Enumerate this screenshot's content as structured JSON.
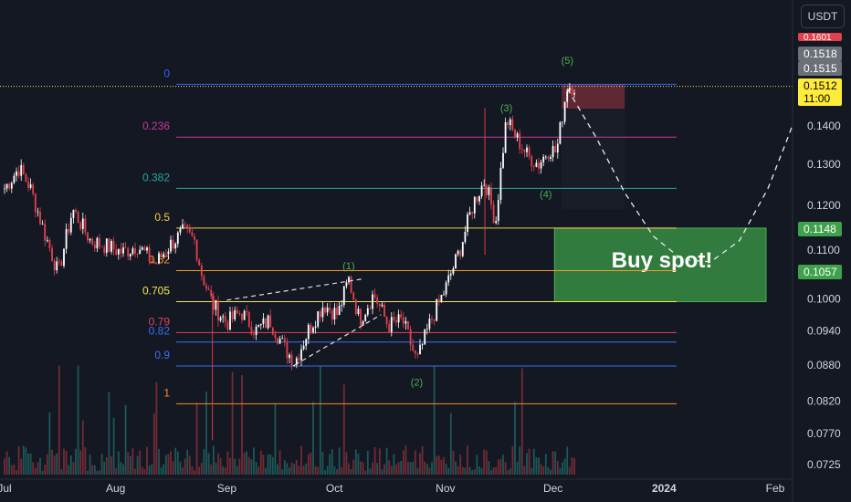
{
  "header": {
    "currency_button": "USDT"
  },
  "chart_data": {
    "type": "candlestick",
    "title": "",
    "xlabel": "",
    "ylabel": "",
    "x_ticks": [
      "Jul",
      "Aug",
      "Sep",
      "Oct",
      "Nov",
      "Dec",
      "2024",
      "Feb"
    ],
    "y_ticks": [
      "0.1400",
      "0.1300",
      "0.1200",
      "0.1100",
      "0.1000",
      "0.0940",
      "0.0880",
      "0.0820",
      "0.0770",
      "0.0725"
    ],
    "y_scale": "log",
    "ylim": [
      0.0705,
      0.172
    ],
    "grid": false,
    "price_path": [
      [
        "2023-07-01",
        0.124
      ],
      [
        "2023-07-05",
        0.129
      ],
      [
        "2023-07-08",
        0.1245
      ],
      [
        "2023-07-12",
        0.114
      ],
      [
        "2023-07-16",
        0.105
      ],
      [
        "2023-07-20",
        0.119
      ],
      [
        "2023-07-25",
        0.112
      ],
      [
        "2023-07-29",
        0.111
      ],
      [
        "2023-08-03",
        0.1095
      ],
      [
        "2023-08-07",
        0.111
      ],
      [
        "2023-08-12",
        0.107
      ],
      [
        "2023-08-16",
        0.111
      ],
      [
        "2023-08-20",
        0.114
      ],
      [
        "2023-08-23",
        0.112
      ],
      [
        "2023-08-25",
        0.105
      ],
      [
        "2023-08-28",
        0.099
      ],
      [
        "2023-09-01",
        0.0955
      ],
      [
        "2023-09-05",
        0.0975
      ],
      [
        "2023-09-09",
        0.094
      ],
      [
        "2023-09-13",
        0.096
      ],
      [
        "2023-09-17",
        0.091
      ],
      [
        "2023-09-20",
        0.0885
      ],
      [
        "2023-09-24",
        0.0945
      ],
      [
        "2023-09-28",
        0.099
      ],
      [
        "2023-10-02",
        0.097
      ],
      [
        "2023-10-05",
        0.104
      ],
      [
        "2023-10-08",
        0.096
      ],
      [
        "2023-10-12",
        0.101
      ],
      [
        "2023-10-16",
        0.095
      ],
      [
        "2023-10-20",
        0.096
      ],
      [
        "2023-10-24",
        0.0885
      ],
      [
        "2023-10-28",
        0.096
      ],
      [
        "2023-11-01",
        0.102
      ],
      [
        "2023-11-05",
        0.11
      ],
      [
        "2023-11-09",
        0.121
      ],
      [
        "2023-11-12",
        0.126
      ],
      [
        "2023-11-15",
        0.116
      ],
      [
        "2023-11-18",
        0.142
      ],
      [
        "2023-11-20",
        0.138
      ],
      [
        "2023-11-24",
        0.132
      ],
      [
        "2023-11-27",
        0.13
      ],
      [
        "2023-11-30",
        0.134
      ],
      [
        "2023-12-02",
        0.133
      ],
      [
        "2023-12-05",
        0.1515
      ],
      [
        "2023-12-07",
        0.1512
      ]
    ],
    "current_price": "0.1512",
    "countdown": "11:00",
    "price_badges": [
      {
        "label": "0.1601",
        "color": "#e0424d"
      },
      {
        "label": "0.1518",
        "color": "#6b6f78"
      },
      {
        "label": "0.1515",
        "color": "#6b6f78"
      },
      {
        "label": "0.1512",
        "color": "#ffeb3b"
      },
      {
        "label": "0.1148",
        "color": "#3fa24a"
      },
      {
        "label": "0.1057",
        "color": "#3fa24a"
      }
    ],
    "fib_levels": [
      {
        "label": "0",
        "price": 0.1518,
        "color": "#2962ff"
      },
      {
        "label": "0.236",
        "price": 0.137,
        "color": "#c2399f"
      },
      {
        "label": "0.382",
        "price": 0.124,
        "color": "#26a69a"
      },
      {
        "label": "0.5",
        "price": 0.1148,
        "color": "#f7c948"
      },
      {
        "label": "0.62",
        "price": 0.1057,
        "color": "#f59c24"
      },
      {
        "label": "0.705",
        "price": 0.0995,
        "color": "#f7e648"
      },
      {
        "label": "0.79",
        "price": 0.0937,
        "color": "#e0435b"
      },
      {
        "label": "0.82",
        "price": 0.092,
        "color": "#3a6ff2"
      },
      {
        "label": "0.9",
        "price": 0.0878,
        "color": "#3a6ff2"
      },
      {
        "label": "1",
        "price": 0.0816,
        "color": "#f58c24"
      }
    ],
    "waves": [
      {
        "label": "(1)",
        "date": "2023-10-05",
        "price": 0.106,
        "color": "#4caf50"
      },
      {
        "label": "(2)",
        "date": "2023-10-24",
        "price": 0.0845,
        "color": "#4caf50"
      },
      {
        "label": "(3)",
        "date": "2023-11-18",
        "price": 0.144,
        "color": "#4caf50"
      },
      {
        "label": "(4)",
        "date": "2023-11-29",
        "price": 0.1218,
        "color": "#4caf50"
      },
      {
        "label": "(5)",
        "date": "2023-12-05",
        "price": 0.158,
        "color": "#4caf50"
      }
    ],
    "buy_zone": {
      "label": "Buy spot!",
      "date_start": "2023-12-05",
      "date_end": "2024-02-01",
      "price_top": 0.1148,
      "price_bottom": 0.0995,
      "color": "#3fa24a"
    },
    "sell_zone": {
      "date_start": "2023-12-06",
      "date_end": "2023-12-21",
      "price_top": 0.1518,
      "price_bottom": 0.1448,
      "color": "#7a2d3b"
    },
    "projection": [
      [
        "2023-12-05",
        0.1505
      ],
      [
        "2023-12-13",
        0.137
      ],
      [
        "2023-12-21",
        0.123
      ],
      [
        "2023-12-29",
        0.113
      ],
      [
        "2024-01-06",
        0.108
      ],
      [
        "2024-01-14",
        0.1075
      ],
      [
        "2024-01-22",
        0.112
      ],
      [
        "2024-01-30",
        0.124
      ],
      [
        "2024-02-05",
        0.138
      ],
      [
        "2024-02-10",
        0.153
      ]
    ],
    "triangle": {
      "upper": [
        [
          "2023-09-01",
          0.0998
        ],
        [
          "2023-10-09",
          0.104
        ]
      ],
      "lower": [
        [
          "2023-09-20",
          0.088
        ],
        [
          "2023-10-14",
          0.097
        ]
      ]
    }
  }
}
